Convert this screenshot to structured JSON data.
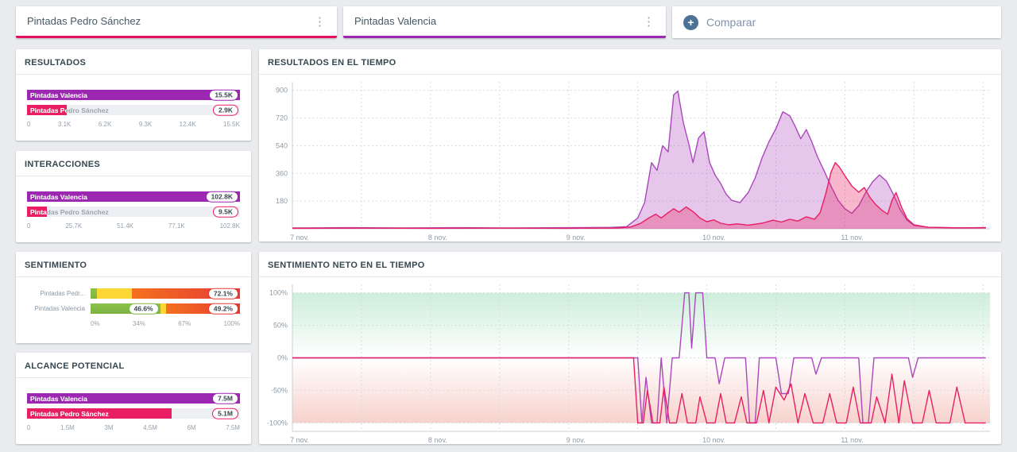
{
  "colors": {
    "purple": "#9c27b0",
    "purple_stroke": "#ab47bc",
    "purple_fill": "rgba(171,71,188,0.30)",
    "pink": "#e91e63",
    "pink_stroke": "#e91e63",
    "pink_fill": "rgba(233,30,99,0.32)",
    "positive": "#7cb342",
    "neutral": "#fdd835",
    "negative": "#e53935"
  },
  "topbar": {
    "queries": [
      {
        "label": "Pintadas Pedro Sánchez",
        "accent": "#e5115f",
        "menu_icon": "⋮"
      },
      {
        "label": "Pintadas Valencia",
        "accent": "#9c27b0",
        "menu_icon": "⋮"
      }
    ],
    "compare_label": "Comparar",
    "compare_icon": "+"
  },
  "chart_data": [
    {
      "id": "resultados",
      "type": "bar",
      "title": "RESULTADOS",
      "max": 15500,
      "rows": [
        {
          "label": "Pintadas Valencia",
          "value": 15500,
          "display": "15.5K",
          "series": "purple"
        },
        {
          "label": "Pintadas Pedro Sánchez",
          "value": 2900,
          "display": "2.9K",
          "series": "pink"
        }
      ],
      "x_ticks": [
        "0",
        "3.1K",
        "6.2K",
        "9.3K",
        "12.4K",
        "15.5K"
      ]
    },
    {
      "id": "interacciones",
      "type": "bar",
      "title": "INTERACCIONES",
      "max": 102800,
      "rows": [
        {
          "label": "Pintadas Valencia",
          "value": 102800,
          "display": "102.8K",
          "series": "purple"
        },
        {
          "label": "Pintadas Pedro Sánchez",
          "value": 9500,
          "display": "9.5K",
          "series": "pink"
        }
      ],
      "x_ticks": [
        "0",
        "25.7K",
        "51.4K",
        "77.1K",
        "102.8K"
      ]
    },
    {
      "id": "sentimiento",
      "type": "stacked-bar",
      "title": "SENTIMIENTO",
      "rows": [
        {
          "label": "Pintadas Pedr...",
          "segments": [
            {
              "name": "positive",
              "pct": 4.5
            },
            {
              "name": "neutral",
              "pct": 23.4
            },
            {
              "name": "negative",
              "pct": 72.1
            }
          ],
          "badges": [
            {
              "text": "72.1%",
              "series": "negative",
              "pos": 100
            }
          ]
        },
        {
          "label": "Pintadas Valencia",
          "segments": [
            {
              "name": "positive",
              "pct": 46.6
            },
            {
              "name": "neutral",
              "pct": 4.2
            },
            {
              "name": "negative",
              "pct": 49.2
            }
          ],
          "badges": [
            {
              "text": "46.6%",
              "series": "positive",
              "pos": 46.6
            },
            {
              "text": "49.2%",
              "series": "negative",
              "pos": 100
            }
          ]
        }
      ],
      "x_ticks": [
        "0%",
        "34%",
        "67%",
        "100%"
      ]
    },
    {
      "id": "alcance",
      "type": "bar",
      "title": "ALCANCE POTENCIAL",
      "max": 7500000,
      "rows": [
        {
          "label": "Pintadas Valencia",
          "value": 7500000,
          "display": "7.5M",
          "series": "purple"
        },
        {
          "label": "Pintadas Pedro Sánchez",
          "value": 5100000,
          "display": "5.1M",
          "series": "pink"
        }
      ],
      "x_ticks": [
        "0",
        "1.5M",
        "3M",
        "4.5M",
        "6M",
        "7.5M"
      ]
    },
    {
      "id": "resultados_tiempo",
      "type": "area",
      "title": "RESULTADOS EN EL TIEMPO",
      "x_range": [
        7,
        12.05
      ],
      "y_range": [
        0,
        955
      ],
      "grid_step_x": 0.5,
      "gradient": false,
      "y_ticks": [
        {
          "v": 180,
          "label": "180"
        },
        {
          "v": 360,
          "label": "360"
        },
        {
          "v": 540,
          "label": "540"
        },
        {
          "v": 720,
          "label": "720"
        },
        {
          "v": 900,
          "label": "900"
        }
      ],
      "x_ticks": [
        {
          "x": 7,
          "label": "7 nov."
        },
        {
          "x": 8,
          "label": "8 nov."
        },
        {
          "x": 9,
          "label": "9 nov."
        },
        {
          "x": 10,
          "label": "10 nov."
        },
        {
          "x": 11,
          "label": "11 nov."
        }
      ],
      "series": [
        {
          "name": "Pintadas Valencia",
          "color_key": "purple",
          "fill": true,
          "points": [
            [
              7,
              5
            ],
            [
              7.4,
              7
            ],
            [
              7.8,
              5
            ],
            [
              8.2,
              7
            ],
            [
              8.6,
              5
            ],
            [
              9,
              7
            ],
            [
              9.3,
              9
            ],
            [
              9.42,
              14
            ],
            [
              9.5,
              70
            ],
            [
              9.55,
              170
            ],
            [
              9.6,
              430
            ],
            [
              9.64,
              380
            ],
            [
              9.68,
              540
            ],
            [
              9.72,
              500
            ],
            [
              9.76,
              870
            ],
            [
              9.79,
              895
            ],
            [
              9.83,
              690
            ],
            [
              9.87,
              550
            ],
            [
              9.9,
              430
            ],
            [
              9.94,
              590
            ],
            [
              9.98,
              630
            ],
            [
              10.02,
              430
            ],
            [
              10.06,
              350
            ],
            [
              10.1,
              295
            ],
            [
              10.14,
              225
            ],
            [
              10.18,
              185
            ],
            [
              10.24,
              170
            ],
            [
              10.3,
              235
            ],
            [
              10.35,
              330
            ],
            [
              10.4,
              460
            ],
            [
              10.45,
              565
            ],
            [
              10.5,
              650
            ],
            [
              10.55,
              760
            ],
            [
              10.6,
              735
            ],
            [
              10.64,
              665
            ],
            [
              10.68,
              585
            ],
            [
              10.72,
              645
            ],
            [
              10.76,
              565
            ],
            [
              10.8,
              470
            ],
            [
              10.85,
              375
            ],
            [
              10.9,
              275
            ],
            [
              10.95,
              185
            ],
            [
              11,
              130
            ],
            [
              11.05,
              100
            ],
            [
              11.1,
              150
            ],
            [
              11.15,
              235
            ],
            [
              11.2,
              305
            ],
            [
              11.25,
              350
            ],
            [
              11.3,
              310
            ],
            [
              11.35,
              225
            ],
            [
              11.4,
              125
            ],
            [
              11.45,
              55
            ],
            [
              11.5,
              22
            ],
            [
              11.6,
              10
            ],
            [
              11.75,
              7
            ],
            [
              11.9,
              6
            ],
            [
              12.02,
              8
            ]
          ]
        },
        {
          "name": "Pintadas Pedro Sánchez",
          "color_key": "pink",
          "fill": true,
          "points": [
            [
              7,
              3
            ],
            [
              7.5,
              4
            ],
            [
              8,
              3
            ],
            [
              8.5,
              4
            ],
            [
              9,
              3
            ],
            [
              9.35,
              5
            ],
            [
              9.45,
              12
            ],
            [
              9.52,
              35
            ],
            [
              9.58,
              70
            ],
            [
              9.63,
              95
            ],
            [
              9.67,
              70
            ],
            [
              9.72,
              105
            ],
            [
              9.76,
              130
            ],
            [
              9.8,
              108
            ],
            [
              9.85,
              142
            ],
            [
              9.9,
              112
            ],
            [
              9.95,
              70
            ],
            [
              10,
              46
            ],
            [
              10.05,
              58
            ],
            [
              10.1,
              36
            ],
            [
              10.16,
              26
            ],
            [
              10.22,
              32
            ],
            [
              10.3,
              24
            ],
            [
              10.4,
              36
            ],
            [
              10.48,
              56
            ],
            [
              10.54,
              44
            ],
            [
              10.6,
              62
            ],
            [
              10.66,
              50
            ],
            [
              10.72,
              78
            ],
            [
              10.78,
              62
            ],
            [
              10.82,
              105
            ],
            [
              10.86,
              225
            ],
            [
              10.9,
              370
            ],
            [
              10.93,
              430
            ],
            [
              10.96,
              400
            ],
            [
              11,
              345
            ],
            [
              11.05,
              278
            ],
            [
              11.1,
              238
            ],
            [
              11.14,
              268
            ],
            [
              11.18,
              205
            ],
            [
              11.22,
              160
            ],
            [
              11.27,
              118
            ],
            [
              11.31,
              95
            ],
            [
              11.34,
              185
            ],
            [
              11.37,
              235
            ],
            [
              11.41,
              140
            ],
            [
              11.45,
              65
            ],
            [
              11.5,
              26
            ],
            [
              11.6,
              10
            ],
            [
              11.8,
              6
            ],
            [
              12.02,
              7
            ]
          ]
        }
      ]
    },
    {
      "id": "sentimiento_tiempo",
      "type": "line",
      "title": "SENTIMIENTO NETO EN EL TIEMPO",
      "x_range": [
        7,
        12.05
      ],
      "y_range": [
        -113,
        113
      ],
      "grid_step_x": 0.5,
      "gradient": true,
      "y_ticks": [
        {
          "v": 100,
          "label": "100%"
        },
        {
          "v": 50,
          "label": "50%"
        },
        {
          "v": 0,
          "label": "0%"
        },
        {
          "v": -50,
          "label": "-50%"
        },
        {
          "v": -100,
          "label": "-100%"
        }
      ],
      "x_ticks": [
        {
          "x": 7,
          "label": "7 nov."
        },
        {
          "x": 8,
          "label": "8 nov."
        },
        {
          "x": 9,
          "label": "9 nov."
        },
        {
          "x": 10,
          "label": "10 nov."
        },
        {
          "x": 11,
          "label": "11 nov."
        }
      ],
      "series": [
        {
          "name": "Pintadas Valencia",
          "color_key": "purple",
          "fill": false,
          "points": [
            [
              7,
              0
            ],
            [
              9.5,
              0
            ],
            [
              9.53,
              -100
            ],
            [
              9.56,
              -30
            ],
            [
              9.6,
              -100
            ],
            [
              9.64,
              -100
            ],
            [
              9.67,
              0
            ],
            [
              9.71,
              -100
            ],
            [
              9.75,
              0
            ],
            [
              9.8,
              0
            ],
            [
              9.84,
              100
            ],
            [
              9.87,
              100
            ],
            [
              9.89,
              15
            ],
            [
              9.92,
              100
            ],
            [
              9.97,
              100
            ],
            [
              10,
              0
            ],
            [
              10.06,
              0
            ],
            [
              10.09,
              -40
            ],
            [
              10.13,
              0
            ],
            [
              10.28,
              0
            ],
            [
              10.31,
              -100
            ],
            [
              10.35,
              -100
            ],
            [
              10.38,
              0
            ],
            [
              10.5,
              0
            ],
            [
              10.54,
              -55
            ],
            [
              10.59,
              -55
            ],
            [
              10.63,
              0
            ],
            [
              10.76,
              0
            ],
            [
              10.79,
              -25
            ],
            [
              10.83,
              0
            ],
            [
              11.1,
              0
            ],
            [
              11.13,
              -100
            ],
            [
              11.17,
              -100
            ],
            [
              11.21,
              0
            ],
            [
              11.46,
              0
            ],
            [
              11.49,
              -30
            ],
            [
              11.53,
              0
            ],
            [
              12.02,
              0
            ]
          ]
        },
        {
          "name": "Pintadas Pedro Sánchez",
          "color_key": "pink",
          "fill": false,
          "points": [
            [
              7,
              0
            ],
            [
              9.47,
              0
            ],
            [
              9.5,
              -100
            ],
            [
              9.54,
              -100
            ],
            [
              9.57,
              -50
            ],
            [
              9.61,
              -100
            ],
            [
              9.66,
              -100
            ],
            [
              9.69,
              -45
            ],
            [
              9.73,
              -100
            ],
            [
              9.78,
              -100
            ],
            [
              9.82,
              -55
            ],
            [
              9.86,
              -100
            ],
            [
              9.92,
              -100
            ],
            [
              9.95,
              -60
            ],
            [
              10,
              -100
            ],
            [
              10.06,
              -100
            ],
            [
              10.1,
              -55
            ],
            [
              10.14,
              -100
            ],
            [
              10.2,
              -100
            ],
            [
              10.25,
              -60
            ],
            [
              10.29,
              -100
            ],
            [
              10.36,
              -100
            ],
            [
              10.41,
              -50
            ],
            [
              10.45,
              -100
            ],
            [
              10.5,
              -45
            ],
            [
              10.56,
              -65
            ],
            [
              10.61,
              -40
            ],
            [
              10.66,
              -100
            ],
            [
              10.71,
              -55
            ],
            [
              10.77,
              -100
            ],
            [
              10.84,
              -100
            ],
            [
              10.89,
              -55
            ],
            [
              10.94,
              -100
            ],
            [
              11.01,
              -100
            ],
            [
              11.06,
              -45
            ],
            [
              11.11,
              -100
            ],
            [
              11.19,
              -100
            ],
            [
              11.23,
              -60
            ],
            [
              11.29,
              -100
            ],
            [
              11.34,
              -25
            ],
            [
              11.39,
              -100
            ],
            [
              11.43,
              -35
            ],
            [
              11.49,
              -100
            ],
            [
              11.56,
              -100
            ],
            [
              11.61,
              -50
            ],
            [
              11.66,
              -100
            ],
            [
              11.76,
              -100
            ],
            [
              11.81,
              -45
            ],
            [
              11.87,
              -100
            ],
            [
              11.96,
              -100
            ],
            [
              12.02,
              -100
            ]
          ]
        }
      ]
    }
  ]
}
